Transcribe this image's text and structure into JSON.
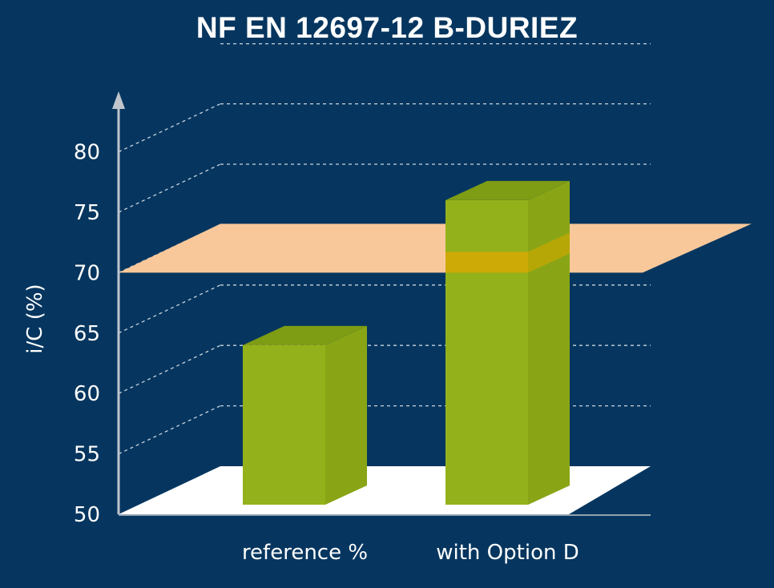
{
  "chart_data": {
    "type": "bar",
    "title": "NF EN 12697-12 B-DURIEZ",
    "ylabel": "i/C (%)",
    "xlabel": "",
    "categories": [
      "reference %",
      "with Option D"
    ],
    "values": [
      64,
      76
    ],
    "ylim": [
      50,
      80
    ],
    "yticks": [
      50,
      55,
      60,
      65,
      70,
      75,
      80
    ],
    "threshold": 70,
    "grid": true,
    "three_d": true
  },
  "colors": {
    "background": "#06365f",
    "bar_front": "#93b11a",
    "bar_top": "#7e9c14",
    "bar_side": "#89a516",
    "threshold_plane": "#f8c89a",
    "floor": "#ffffff",
    "grid": "#c9d3de",
    "axis": "#c0c6cc",
    "text": "#ffffff"
  }
}
